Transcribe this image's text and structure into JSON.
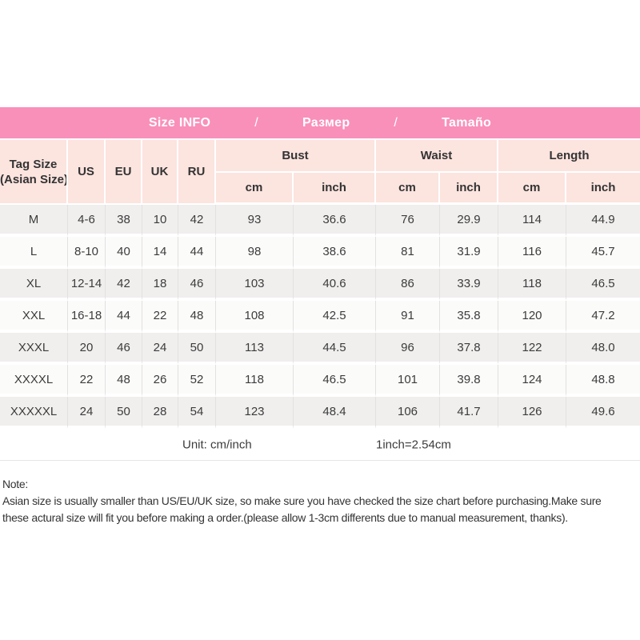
{
  "banner": {
    "bg_color": "#F990BA",
    "items": [
      "Size INFO",
      "/",
      "Размер",
      "/",
      "Tamaño"
    ]
  },
  "table": {
    "header_bg_color": "#FCE4DF",
    "tag_line1": "Tag Size",
    "tag_line2": "(Asian Size)",
    "region_headers": [
      "US",
      "EU",
      "UK",
      "RU"
    ],
    "measure_headers": [
      "Bust",
      "Waist",
      "Length"
    ],
    "unit_subheaders": [
      "cm",
      "inch",
      "cm",
      "inch",
      "cm",
      "inch"
    ],
    "rows": [
      {
        "tag": "M",
        "us": "4-6",
        "eu": "38",
        "uk": "10",
        "ru": "42",
        "bust_cm": "93",
        "bust_inch": "36.6",
        "waist_cm": "76",
        "waist_inch": "29.9",
        "length_cm": "114",
        "length_inch": "44.9"
      },
      {
        "tag": "L",
        "us": "8-10",
        "eu": "40",
        "uk": "14",
        "ru": "44",
        "bust_cm": "98",
        "bust_inch": "38.6",
        "waist_cm": "81",
        "waist_inch": "31.9",
        "length_cm": "116",
        "length_inch": "45.7"
      },
      {
        "tag": "XL",
        "us": "12-14",
        "eu": "42",
        "uk": "18",
        "ru": "46",
        "bust_cm": "103",
        "bust_inch": "40.6",
        "waist_cm": "86",
        "waist_inch": "33.9",
        "length_cm": "118",
        "length_inch": "46.5"
      },
      {
        "tag": "XXL",
        "us": "16-18",
        "eu": "44",
        "uk": "22",
        "ru": "48",
        "bust_cm": "108",
        "bust_inch": "42.5",
        "waist_cm": "91",
        "waist_inch": "35.8",
        "length_cm": "120",
        "length_inch": "47.2"
      },
      {
        "tag": "XXXL",
        "us": "20",
        "eu": "46",
        "uk": "24",
        "ru": "50",
        "bust_cm": "113",
        "bust_inch": "44.5",
        "waist_cm": "96",
        "waist_inch": "37.8",
        "length_cm": "122",
        "length_inch": "48.0"
      },
      {
        "tag": "XXXXL",
        "us": "22",
        "eu": "48",
        "uk": "26",
        "ru": "52",
        "bust_cm": "118",
        "bust_inch": "46.5",
        "waist_cm": "101",
        "waist_inch": "39.8",
        "length_cm": "124",
        "length_inch": "48.8"
      },
      {
        "tag": "XXXXXL",
        "us": "24",
        "eu": "50",
        "uk": "28",
        "ru": "54",
        "bust_cm": "123",
        "bust_inch": "48.4",
        "waist_cm": "106",
        "waist_inch": "41.7",
        "length_cm": "126",
        "length_inch": "49.6"
      }
    ]
  },
  "footer": {
    "unit_label": "Unit: cm/inch",
    "conversion": "1inch=2.54cm"
  },
  "note": {
    "title": "Note:",
    "line1": "Asian size is usually smaller than US/EU/UK size, so make sure you have checked the size chart before purchasing.Make sure",
    "line2": "these actural size will fit you before making a order.(please allow 1-3cm differents due to manual measurement, thanks)."
  }
}
